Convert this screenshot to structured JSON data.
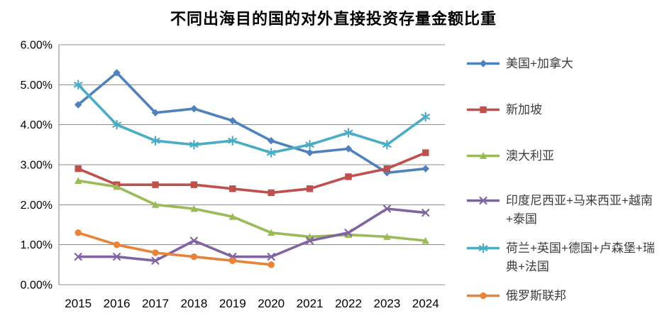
{
  "chart_data": {
    "type": "line",
    "title": "不同出海目的国的对外直接投资存量金额比重",
    "x": [
      "2015",
      "2016",
      "2017",
      "2018",
      "2019",
      "2020",
      "2021",
      "2022",
      "2023",
      "2024"
    ],
    "y_axis": {
      "min": 0,
      "max": 6,
      "step": 1,
      "unit": "%",
      "tick_labels": [
        "6.00%",
        "5.00%",
        "4.00%",
        "3.00%",
        "2.00%",
        "1.00%",
        "0.00%"
      ]
    },
    "grid": true,
    "legend_position": "right",
    "series": [
      {
        "id": "us-canada",
        "label": "美国+加拿大",
        "color": "#4F81BD",
        "marker": "diamond",
        "values": [
          4.5,
          5.3,
          4.3,
          4.4,
          4.1,
          3.6,
          3.3,
          3.4,
          2.8,
          2.9
        ]
      },
      {
        "id": "singapore",
        "label": "新加坡",
        "color": "#C0504D",
        "marker": "square",
        "values": [
          2.9,
          2.5,
          2.5,
          2.5,
          2.4,
          2.3,
          2.4,
          2.7,
          2.9,
          3.3
        ]
      },
      {
        "id": "australia",
        "label": "澳大利亚",
        "color": "#9BBB59",
        "marker": "triangle",
        "values": [
          2.6,
          2.45,
          2.0,
          1.9,
          1.7,
          1.3,
          1.2,
          1.25,
          1.2,
          1.1
        ]
      },
      {
        "id": "indonesia-malaysia-vietnam-thailand",
        "label": "印度尼西亚+马来西亚+越南+泰国",
        "color": "#8064A2",
        "marker": "x",
        "values": [
          0.7,
          0.7,
          0.6,
          1.1,
          0.7,
          0.7,
          1.1,
          1.3,
          1.9,
          1.8
        ]
      },
      {
        "id": "netherlands-uk-germany-luxembourg-sweden-france",
        "label": "荷兰+英国+德国+卢森堡+瑞典+法国",
        "color": "#4BACC6",
        "marker": "asterisk",
        "values": [
          5.0,
          4.0,
          3.6,
          3.5,
          3.6,
          3.3,
          3.5,
          3.8,
          3.5,
          4.2
        ]
      },
      {
        "id": "russia",
        "label": "俄罗斯联邦",
        "color": "#E8833A",
        "marker": "circle",
        "values": [
          1.3,
          1.0,
          0.8,
          0.7,
          0.6,
          0.5,
          null,
          null,
          null,
          null
        ]
      }
    ],
    "style": {
      "gridline_color": "#8f8f8f",
      "axis_color": "#7f7f7f",
      "tick_label_color": "#000000",
      "title_color": "#000000"
    }
  }
}
